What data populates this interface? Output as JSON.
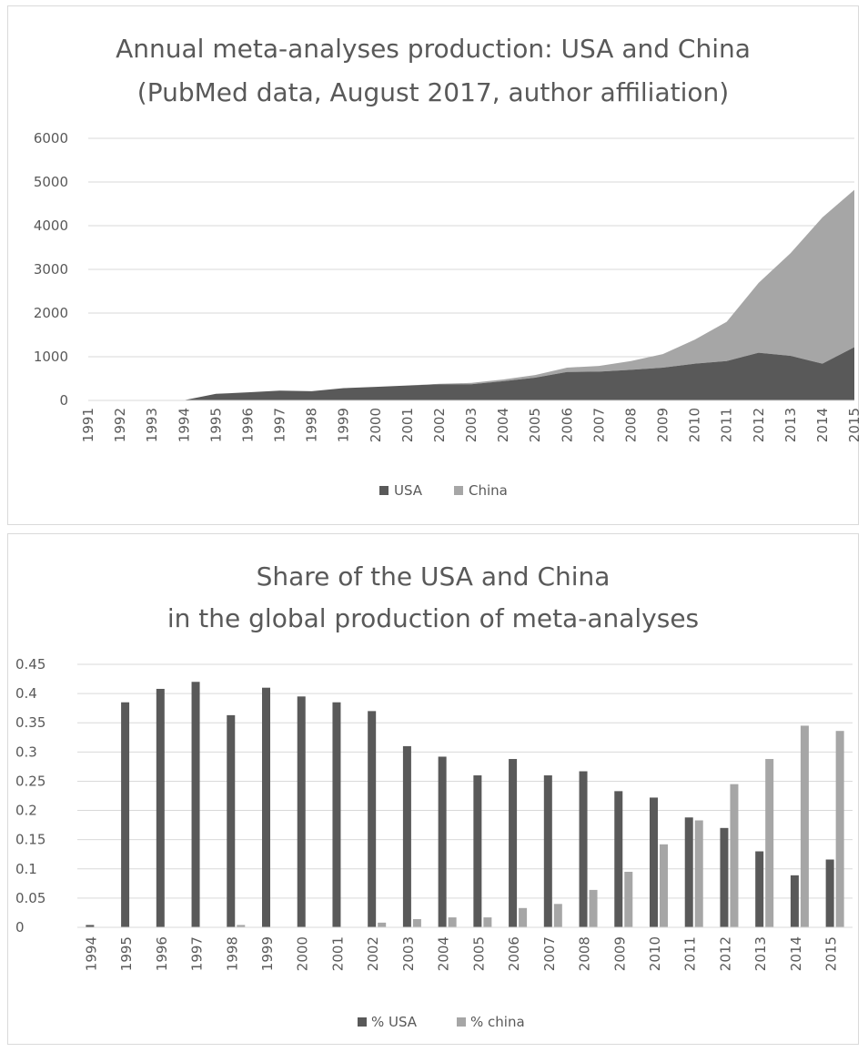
{
  "chart_data": [
    {
      "type": "area",
      "title": "Annual meta-analyses production: USA and China",
      "subtitle": "(PubMed data, August 2017, author affiliation)",
      "categories": [
        "1991",
        "1992",
        "1993",
        "1994",
        "1995",
        "1996",
        "1997",
        "1998",
        "1999",
        "2000",
        "2001",
        "2002",
        "2003",
        "2004",
        "2005",
        "2006",
        "2007",
        "2008",
        "2009",
        "2010",
        "2011",
        "2012",
        "2013",
        "2014",
        "2015"
      ],
      "series": [
        {
          "name": "USA",
          "color": "#595959",
          "values": [
            0,
            0,
            0,
            5,
            150,
            185,
            225,
            210,
            280,
            310,
            340,
            370,
            370,
            440,
            520,
            650,
            660,
            700,
            750,
            840,
            900,
            1090,
            1020,
            840,
            1220
          ]
        },
        {
          "name": "China",
          "color": "#a6a6a6",
          "values": [
            0,
            0,
            0,
            0,
            0,
            0,
            0,
            0,
            0,
            0,
            0,
            10,
            30,
            40,
            60,
            100,
            130,
            200,
            310,
            550,
            900,
            1600,
            2350,
            3350,
            3600
          ]
        }
      ],
      "stacked": true,
      "ylim": [
        0,
        6000
      ],
      "yticks": [
        0,
        1000,
        2000,
        3000,
        4000,
        5000,
        6000
      ],
      "grid": true,
      "legend": "bottom"
    },
    {
      "type": "bar",
      "title": "Share of the USA and China",
      "subtitle": "in the global production of meta-analyses",
      "categories": [
        "1994",
        "1995",
        "1996",
        "1997",
        "1998",
        "1999",
        "2000",
        "2001",
        "2002",
        "2003",
        "2004",
        "2005",
        "2006",
        "2007",
        "2008",
        "2009",
        "2010",
        "2011",
        "2012",
        "2013",
        "2014",
        "2015"
      ],
      "series": [
        {
          "name": "% USA",
          "color": "#595959",
          "values": [
            0.004,
            0.385,
            0.408,
            0.42,
            0.363,
            0.41,
            0.395,
            0.385,
            0.37,
            0.31,
            0.292,
            0.26,
            0.288,
            0.26,
            0.267,
            0.233,
            0.222,
            0.188,
            0.17,
            0.13,
            0.089,
            0.116
          ]
        },
        {
          "name": "% china",
          "color": "#a6a6a6",
          "values": [
            0,
            0,
            0,
            0,
            0.004,
            0,
            0,
            0,
            0.008,
            0.014,
            0.017,
            0.017,
            0.033,
            0.04,
            0.064,
            0.095,
            0.142,
            0.183,
            0.245,
            0.288,
            0.345,
            0.336
          ]
        }
      ],
      "ylim": [
        0,
        0.45
      ],
      "yticks": [
        "0",
        "0.05",
        "0.1",
        "0.15",
        "0.2",
        "0.25",
        "0.3",
        "0.35",
        "0.4",
        "0.45"
      ],
      "grid": true,
      "legend": "bottom"
    }
  ]
}
